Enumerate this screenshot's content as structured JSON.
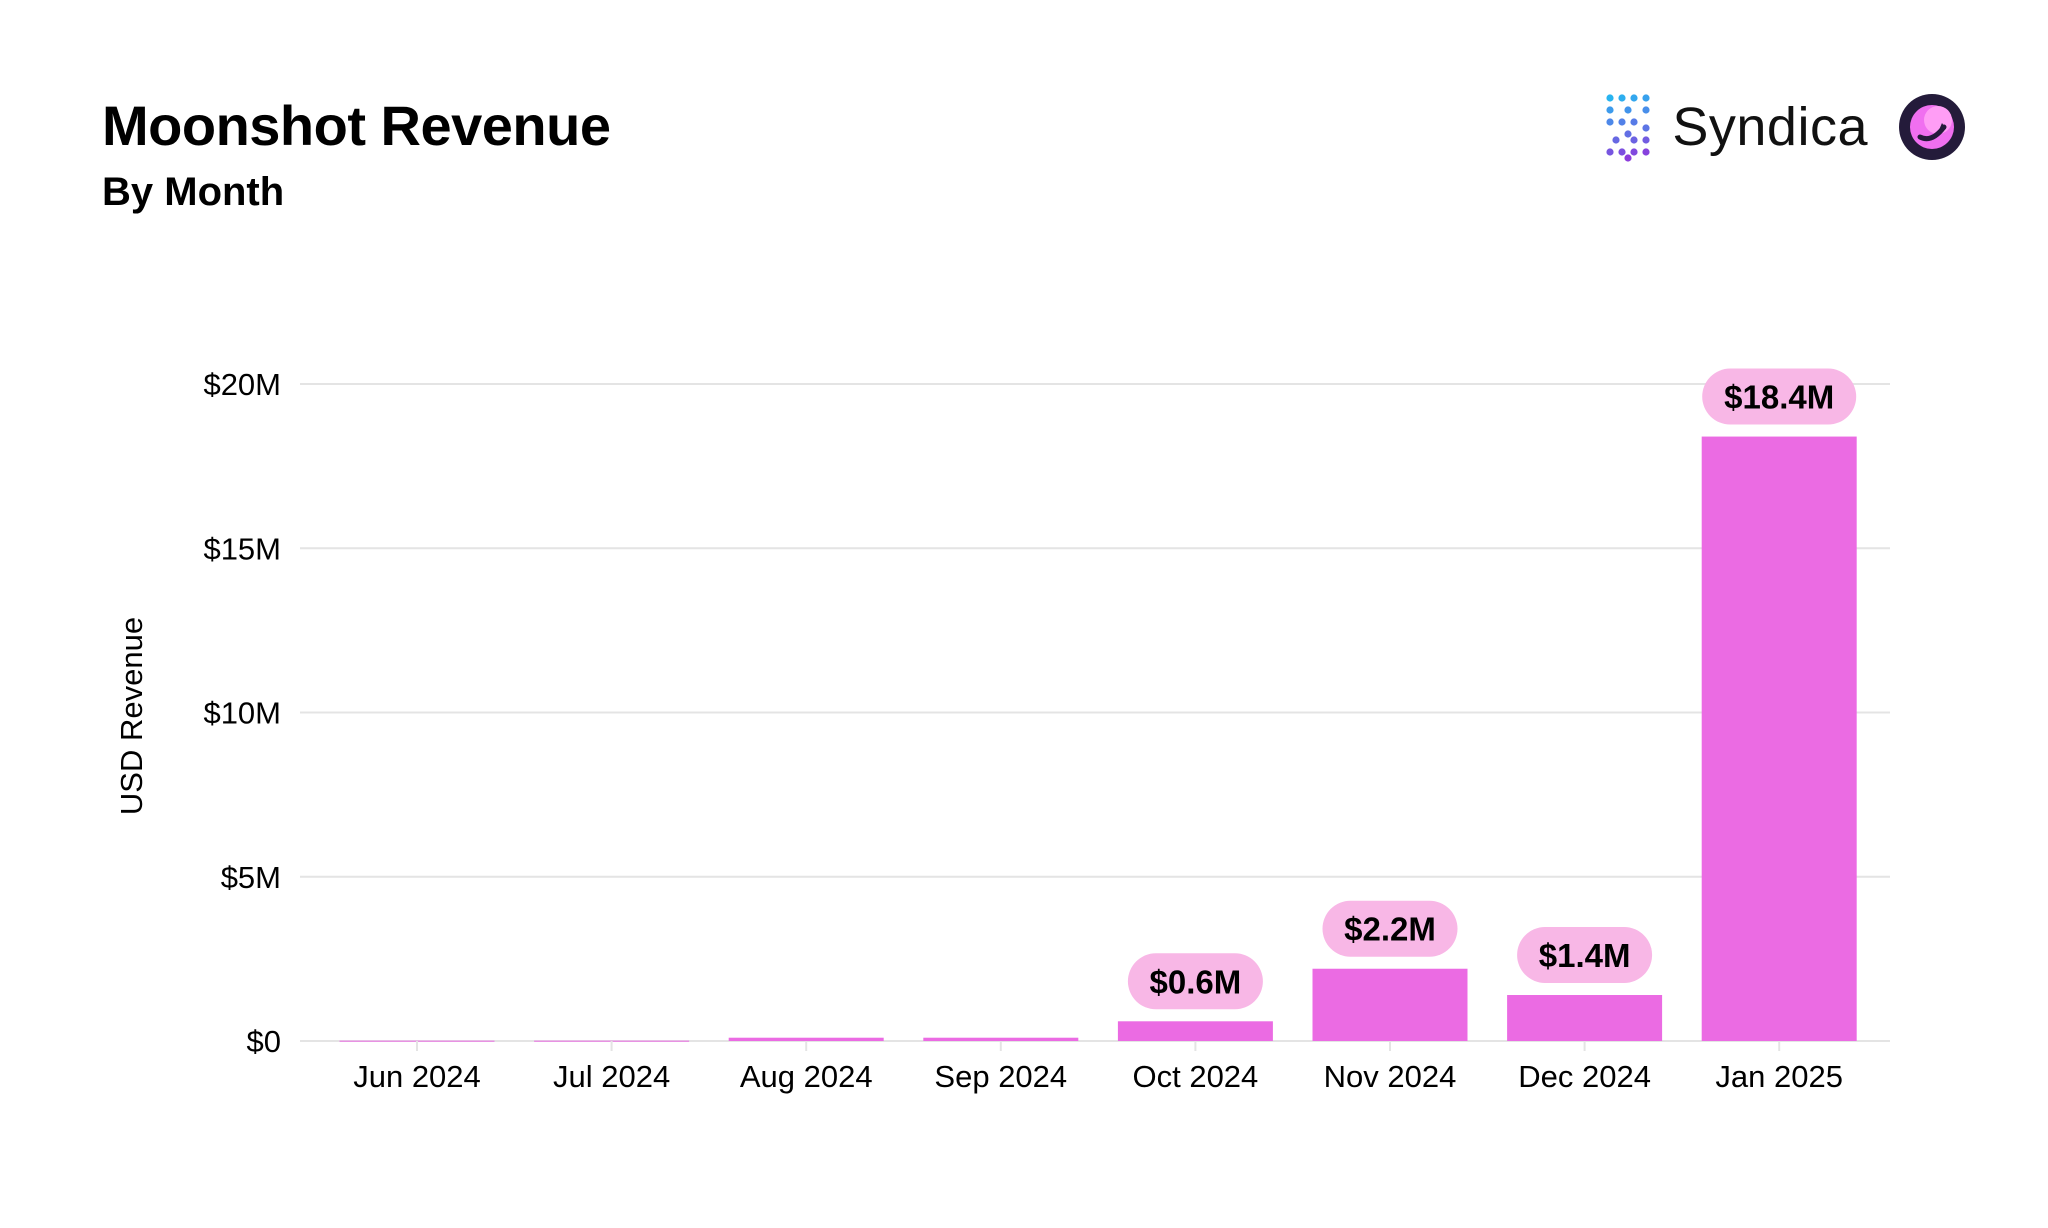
{
  "header": {
    "title": "Moonshot Revenue",
    "subtitle": "By Month"
  },
  "brand": {
    "name": "Syndica",
    "logo_icon": "syndica-logo-icon",
    "coin_icon": "moonshot-coin-icon"
  },
  "colors": {
    "bar": "#EB6BE3",
    "label_bg": "#F8B7E6",
    "grid": "#E4E4E4",
    "text": "#000000"
  },
  "chart_data": {
    "type": "bar",
    "title": "Moonshot Revenue",
    "subtitle": "By Month",
    "xlabel": "",
    "ylabel": "USD Revenue",
    "categories": [
      "Jun 2024",
      "Jul 2024",
      "Aug 2024",
      "Sep 2024",
      "Oct 2024",
      "Nov 2024",
      "Dec 2024",
      "Jan 2025"
    ],
    "values": [
      0.01,
      0.01,
      0.1,
      0.1,
      0.6,
      2.2,
      1.4,
      18.4
    ],
    "data_labels": [
      "",
      "",
      "",
      "",
      "$0.6M",
      "$2.2M",
      "$1.4M",
      "$18.4M"
    ],
    "units": "USD millions",
    "ylim": [
      0,
      20
    ],
    "yticks": [
      0,
      5,
      10,
      15,
      20
    ],
    "ytick_labels": [
      "$0",
      "$5M",
      "$10M",
      "$15M",
      "$20M"
    ],
    "grid": true,
    "legend": "none"
  }
}
